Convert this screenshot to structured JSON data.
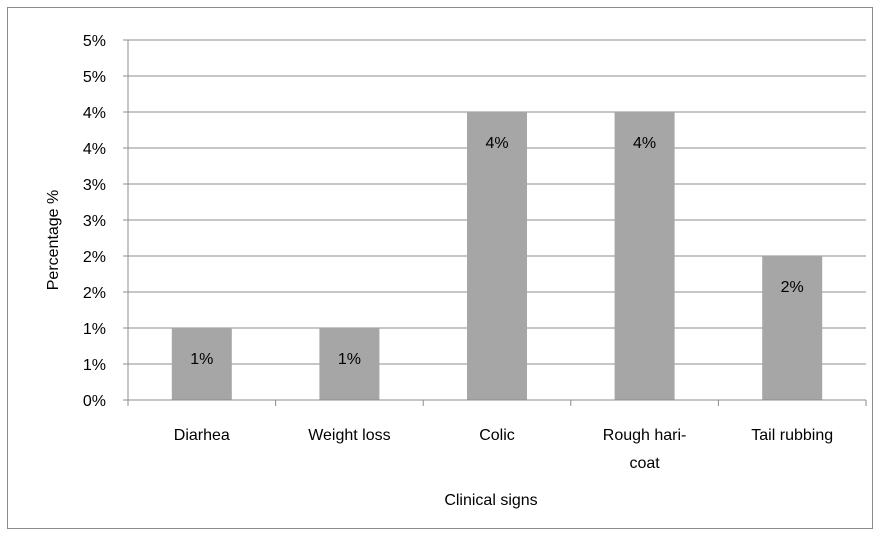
{
  "chart_data": {
    "type": "bar",
    "title": "",
    "xlabel": "Clinical signs",
    "ylabel": "Percentage %",
    "categories": [
      [
        "Diarhea"
      ],
      [
        "Weight loss"
      ],
      [
        "Colic"
      ],
      [
        "Rough hari-",
        "coat"
      ],
      [
        "Tail rubbing"
      ]
    ],
    "values": [
      1,
      1,
      4,
      4,
      2
    ],
    "data_labels": [
      "1%",
      "1%",
      "4%",
      "4%",
      "2%"
    ],
    "ylim": [
      0,
      5
    ],
    "y_ticks": [
      0,
      0.5,
      1,
      1.5,
      2,
      2.5,
      3,
      3.5,
      4,
      4.5,
      5
    ],
    "y_tick_labels": [
      "0%",
      "1%",
      "1%",
      "2%",
      "2%",
      "3%",
      "3%",
      "4%",
      "4%",
      "5%",
      "5%"
    ],
    "grid": true,
    "legend": "none",
    "bar_color": "#a6a6a6",
    "grid_color": "#8c8c8c"
  }
}
